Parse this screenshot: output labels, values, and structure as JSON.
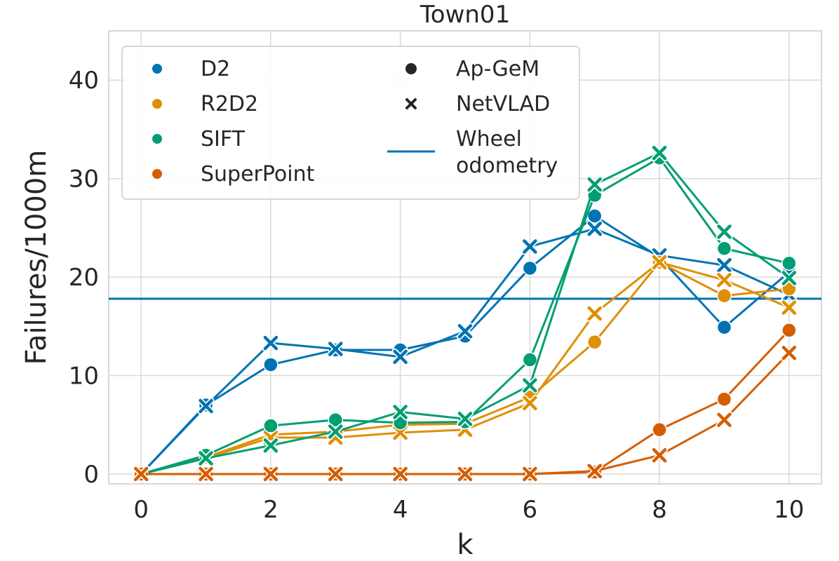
{
  "chart_data": {
    "type": "line",
    "title": "Town01",
    "xlabel": "k",
    "ylabel": "Failures/1000m",
    "xlim": [
      -0.5,
      10.5
    ],
    "ylim": [
      -1,
      45
    ],
    "xticks": [
      0,
      2,
      4,
      6,
      8,
      10
    ],
    "yticks": [
      0,
      10,
      20,
      30,
      40
    ],
    "grid": true,
    "x": [
      0,
      1,
      2,
      3,
      4,
      5,
      6,
      7,
      8,
      9,
      10
    ],
    "hline": {
      "name_line1": "Wheel",
      "name_line2": "odometry",
      "value": 17.8,
      "color": "#0173b2"
    },
    "legend": {
      "position": "top-left",
      "methods_label_order": [
        "D2",
        "R2D2",
        "SIFT",
        "SuperPoint"
      ],
      "markers": [
        {
          "name": "Ap-GeM",
          "marker": "circle"
        },
        {
          "name": "NetVLAD",
          "marker": "x"
        }
      ]
    },
    "series": [
      {
        "method": "D2",
        "marker": "circle",
        "color": "#0173b2",
        "values": [
          0,
          7.0,
          11.1,
          12.6,
          12.6,
          14.0,
          20.9,
          26.2,
          22.0,
          14.9,
          20.5
        ]
      },
      {
        "method": "D2",
        "marker": "x",
        "color": "#0173b2",
        "values": [
          0,
          6.9,
          13.3,
          12.7,
          11.9,
          14.5,
          23.1,
          24.9,
          22.2,
          21.2,
          18.2
        ]
      },
      {
        "method": "R2D2",
        "marker": "circle",
        "color": "#de8f05",
        "values": [
          0,
          1.7,
          4.0,
          4.3,
          5.0,
          5.1,
          7.8,
          13.4,
          21.5,
          18.1,
          18.8
        ]
      },
      {
        "method": "R2D2",
        "marker": "x",
        "color": "#de8f05",
        "values": [
          0,
          1.6,
          3.7,
          3.7,
          4.2,
          4.5,
          7.2,
          16.3,
          21.5,
          19.7,
          16.9
        ]
      },
      {
        "method": "SIFT",
        "marker": "circle",
        "color": "#029e73",
        "values": [
          0,
          1.9,
          4.9,
          5.5,
          5.2,
          5.3,
          11.6,
          28.3,
          32.1,
          22.9,
          21.4
        ]
      },
      {
        "method": "SIFT",
        "marker": "x",
        "color": "#029e73",
        "values": [
          0,
          1.6,
          2.9,
          4.3,
          6.3,
          5.6,
          9.0,
          29.4,
          32.6,
          24.6,
          19.9
        ]
      },
      {
        "method": "SuperPoint",
        "marker": "circle",
        "color": "#d55e00",
        "values": [
          0,
          0,
          0,
          0,
          0,
          0,
          0,
          0.2,
          4.5,
          7.6,
          14.6
        ]
      },
      {
        "method": "SuperPoint",
        "marker": "x",
        "color": "#d55e00",
        "values": [
          0,
          0,
          0,
          0,
          0,
          0,
          0,
          0.3,
          1.9,
          5.5,
          12.3
        ]
      }
    ]
  }
}
